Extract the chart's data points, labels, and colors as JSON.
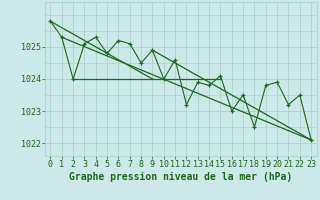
{
  "title": "Graphe pression niveau de la mer (hPa)",
  "x_values": [
    0,
    1,
    2,
    3,
    4,
    5,
    6,
    7,
    8,
    9,
    10,
    11,
    12,
    13,
    14,
    15,
    16,
    17,
    18,
    19,
    20,
    21,
    22,
    23
  ],
  "y_values": [
    1025.8,
    1025.3,
    1024.0,
    1025.1,
    1025.3,
    1024.8,
    1025.2,
    1025.1,
    1024.5,
    1024.9,
    1024.0,
    1024.6,
    1023.2,
    1023.9,
    1023.8,
    1024.1,
    1023.0,
    1023.5,
    1022.5,
    1023.8,
    1023.9,
    1023.2,
    1023.5,
    1022.1
  ],
  "trend1_y": [
    1025.8,
    1024.0
  ],
  "trend1_x": [
    0,
    9
  ],
  "trend2_y": [
    1024.0,
    1024.0
  ],
  "trend2_x": [
    2,
    15
  ],
  "trend3_y": [
    1025.3,
    1022.1
  ],
  "trend3_x": [
    1,
    23
  ],
  "trend4_y": [
    1024.9,
    1022.1
  ],
  "trend4_x": [
    9,
    23
  ],
  "bg_color": "#cce8e8",
  "grid_color": "#aacccc",
  "line_color": "#1a6b1a",
  "trend_color": "#1a6b1a",
  "ylim": [
    1021.6,
    1026.4
  ],
  "xlim": [
    -0.5,
    23.5
  ],
  "yticks": [
    1022,
    1023,
    1024,
    1025
  ],
  "title_fontsize": 7,
  "tick_fontsize": 6
}
